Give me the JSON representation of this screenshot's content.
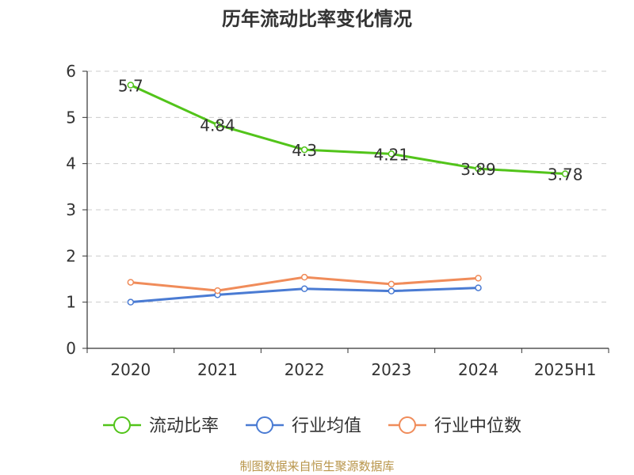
{
  "chart_data": {
    "type": "line",
    "title": "历年流动比率变化情况",
    "categories": [
      "2020",
      "2021",
      "2022",
      "2023",
      "2024",
      "2025H1"
    ],
    "ylim": [
      0,
      6
    ],
    "yticks": [
      "0",
      "1",
      "2",
      "3",
      "4",
      "5",
      "6"
    ],
    "grid": true,
    "legend_position": "bottom",
    "series": [
      {
        "name": "流动比率",
        "color": "#52c41a",
        "values": [
          5.7,
          4.84,
          4.3,
          4.21,
          3.89,
          3.78
        ],
        "labels": [
          "5.7",
          "4.84",
          "4.3",
          "4.21",
          "3.89",
          "3.78"
        ]
      },
      {
        "name": "行业均值",
        "color": "#4a7bd3",
        "values": [
          1.0,
          1.16,
          1.29,
          1.24,
          1.31,
          null
        ]
      },
      {
        "name": "行业中位数",
        "color": "#f08c5a",
        "values": [
          1.43,
          1.25,
          1.54,
          1.39,
          1.52,
          null
        ]
      }
    ]
  },
  "source_note": "制图数据来自恒生聚源数据库"
}
